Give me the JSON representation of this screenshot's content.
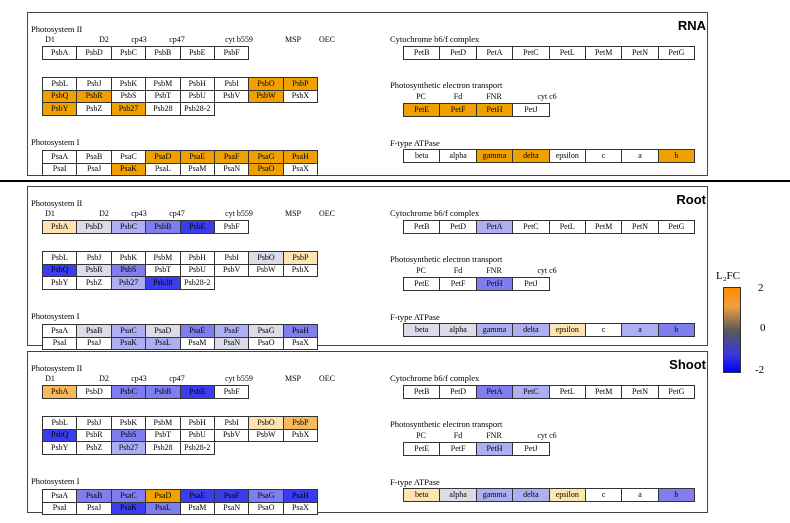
{
  "colors": {
    "0": "#ffffff",
    "u1": "#fde4b0",
    "u2": "#f7b95e",
    "u3": "#f0a000",
    "d1": "#dcdce8",
    "d2": "#aeaef2",
    "d3": "#7e7ef0",
    "d4": "#3b3bf0"
  },
  "legend": {
    "title": "L₂FC",
    "max": "2",
    "mid": "0",
    "min": "-2"
  },
  "panels": [
    {
      "name": "RNA",
      "ps2": {
        "title": "Photosystem II",
        "subunits": {
          "d1": "D1",
          "d2": "D2",
          "cp43": "cp43",
          "cp47": "cp47",
          "cytb559": "cyt b559",
          "msp": "MSP",
          "oec": "OEC"
        },
        "rows": [
          [
            [
              "PsbA",
              "0"
            ],
            [
              "PsbD",
              "0"
            ],
            [
              "PsbC",
              "0"
            ],
            [
              "PsbB",
              "0"
            ],
            [
              "PsbE",
              "0"
            ],
            [
              "PsbF",
              "0"
            ]
          ],
          [
            [
              "PsbL",
              "0"
            ],
            [
              "PsbJ",
              "0"
            ],
            [
              "PsbK",
              "0"
            ],
            [
              "PsbM",
              "0"
            ],
            [
              "PsbH",
              "0"
            ],
            [
              "PsbI",
              "0"
            ],
            [
              "PsbO",
              "u3"
            ],
            [
              "PsbP",
              "u3"
            ]
          ],
          [
            [
              "PsbQ",
              "u3"
            ],
            [
              "PsbR",
              "u3"
            ],
            [
              "PsbS",
              "0"
            ],
            [
              "PsbT",
              "0"
            ],
            [
              "PsbU",
              "0"
            ],
            [
              "PsbV",
              "0"
            ],
            [
              "PsbW",
              "u3"
            ],
            [
              "PsbX",
              "0"
            ]
          ],
          [
            [
              "PsbY",
              "u3"
            ],
            [
              "PsbZ",
              "0"
            ],
            [
              "Psb27",
              "u3"
            ],
            [
              "Psb28",
              "0"
            ],
            [
              "Psb28-2",
              "0"
            ]
          ]
        ]
      },
      "ps1": {
        "title": "Photosystem I",
        "rows": [
          [
            [
              "PsaA",
              "0"
            ],
            [
              "PsaB",
              "0"
            ],
            [
              "PsaC",
              "0"
            ],
            [
              "PsaD",
              "u3"
            ],
            [
              "PsaE",
              "u3"
            ],
            [
              "PsaF",
              "u3"
            ],
            [
              "PsaG",
              "u3"
            ],
            [
              "PsaH",
              "u3"
            ]
          ],
          [
            [
              "PsaI",
              "0"
            ],
            [
              "PsaJ",
              "0"
            ],
            [
              "PsaK",
              "u3"
            ],
            [
              "PsaL",
              "0"
            ],
            [
              "PsaM",
              "0"
            ],
            [
              "PsaN",
              "0"
            ],
            [
              "PsaO",
              "u3"
            ],
            [
              "PsaX",
              "0"
            ]
          ]
        ]
      },
      "cyt": {
        "title": "Cytochrome b6/f complex",
        "cells": [
          [
            "PetB",
            "0"
          ],
          [
            "PetD",
            "0"
          ],
          [
            "PetA",
            "0"
          ],
          [
            "PetC",
            "0"
          ],
          [
            "PetL",
            "0"
          ],
          [
            "PetM",
            "0"
          ],
          [
            "PetN",
            "0"
          ],
          [
            "PetG",
            "0"
          ]
        ]
      },
      "pet": {
        "title": "Photosynthetic electron transport",
        "subunits": {
          "pc": "PC",
          "fd": "Fd",
          "fnr": "FNR",
          "cytc6": "cyt c6"
        },
        "cells": [
          [
            "PetE",
            "u3"
          ],
          [
            "PetF",
            "u3"
          ],
          [
            "PetH",
            "u3"
          ],
          [
            "PetJ",
            "0"
          ]
        ]
      },
      "atp": {
        "title": "F-type ATPase",
        "cells": [
          [
            "beta",
            "0"
          ],
          [
            "alpha",
            "0"
          ],
          [
            "gamma",
            "u3"
          ],
          [
            "delta",
            "u3"
          ],
          [
            "epsilon",
            "0"
          ],
          [
            "c",
            "0"
          ],
          [
            "a",
            "0"
          ],
          [
            "b",
            "u3"
          ]
        ]
      }
    },
    {
      "name": "Root",
      "ps2": {
        "title": "Photosystem II",
        "subunits": {
          "d1": "D1",
          "d2": "D2",
          "cp43": "cp43",
          "cp47": "cp47",
          "cytb559": "cyt b559",
          "msp": "MSP",
          "oec": "OEC"
        },
        "rows": [
          [
            [
              "PsbA",
              "u1"
            ],
            [
              "PsbD",
              "d1"
            ],
            [
              "PsbC",
              "d2"
            ],
            [
              "PsbB",
              "d3"
            ],
            [
              "PsbE",
              "d4"
            ],
            [
              "PsbF",
              "0"
            ]
          ],
          [
            [
              "PsbL",
              "0"
            ],
            [
              "PsbJ",
              "0"
            ],
            [
              "PsbK",
              "0"
            ],
            [
              "PsbM",
              "0"
            ],
            [
              "PsbH",
              "0"
            ],
            [
              "PsbI",
              "0"
            ],
            [
              "PsbO",
              "d1"
            ],
            [
              "PsbP",
              "u1"
            ]
          ],
          [
            [
              "PsbQ",
              "d4"
            ],
            [
              "PsbR",
              "d1"
            ],
            [
              "PsbS",
              "d3"
            ],
            [
              "PsbT",
              "0"
            ],
            [
              "PsbU",
              "0"
            ],
            [
              "PsbV",
              "0"
            ],
            [
              "PsbW",
              "0"
            ],
            [
              "PsbX",
              "0"
            ]
          ],
          [
            [
              "PsbY",
              "0"
            ],
            [
              "PsbZ",
              "0"
            ],
            [
              "Psb27",
              "d2"
            ],
            [
              "Psb28",
              "d4"
            ],
            [
              "Psb28-2",
              "0"
            ]
          ]
        ]
      },
      "ps1": {
        "title": "Photosystem I",
        "rows": [
          [
            [
              "PsaA",
              "0"
            ],
            [
              "PsaB",
              "d1"
            ],
            [
              "PsaC",
              "d2"
            ],
            [
              "PsaD",
              "d1"
            ],
            [
              "PsaE",
              "d3"
            ],
            [
              "PsaF",
              "d2"
            ],
            [
              "PsaG",
              "d1"
            ],
            [
              "PsaH",
              "d3"
            ]
          ],
          [
            [
              "PsaI",
              "0"
            ],
            [
              "PsaJ",
              "0"
            ],
            [
              "PsaK",
              "d2"
            ],
            [
              "PsaL",
              "d2"
            ],
            [
              "PsaM",
              "0"
            ],
            [
              "PsaN",
              "d1"
            ],
            [
              "PsaO",
              "0"
            ],
            [
              "PsaX",
              "0"
            ]
          ]
        ]
      },
      "cyt": {
        "title": "Cytochrome b6/f complex",
        "cells": [
          [
            "PetB",
            "0"
          ],
          [
            "PetD",
            "0"
          ],
          [
            "PetA",
            "d2"
          ],
          [
            "PetC",
            "0"
          ],
          [
            "PetL",
            "0"
          ],
          [
            "PetM",
            "0"
          ],
          [
            "PetN",
            "0"
          ],
          [
            "PetG",
            "0"
          ]
        ]
      },
      "pet": {
        "title": "Photosynthetic electron transport",
        "subunits": {
          "pc": "PC",
          "fd": "Fd",
          "fnr": "FNR",
          "cytc6": "cyt c6"
        },
        "cells": [
          [
            "PetE",
            "0"
          ],
          [
            "PetF",
            "0"
          ],
          [
            "PetH",
            "d3"
          ],
          [
            "PetJ",
            "0"
          ]
        ]
      },
      "atp": {
        "title": "F-type ATPase",
        "cells": [
          [
            "beta",
            "d1"
          ],
          [
            "alpha",
            "d1"
          ],
          [
            "gamma",
            "d2"
          ],
          [
            "delta",
            "d2"
          ],
          [
            "epsilon",
            "u1"
          ],
          [
            "c",
            "0"
          ],
          [
            "a",
            "d2"
          ],
          [
            "b",
            "d3"
          ]
        ]
      }
    },
    {
      "name": "Shoot",
      "ps2": {
        "title": "Photosystem II",
        "subunits": {
          "d1": "D1",
          "d2": "D2",
          "cp43": "cp43",
          "cp47": "cp47",
          "cytb559": "cyt b559",
          "msp": "MSP",
          "oec": "OEC"
        },
        "rows": [
          [
            [
              "PsbA",
              "u2"
            ],
            [
              "PsbD",
              "0"
            ],
            [
              "PsbC",
              "d3"
            ],
            [
              "PsbB",
              "d3"
            ],
            [
              "PsbE",
              "d4"
            ],
            [
              "PsbF",
              "0"
            ]
          ],
          [
            [
              "PsbL",
              "0"
            ],
            [
              "PsbJ",
              "0"
            ],
            [
              "PsbK",
              "0"
            ],
            [
              "PsbM",
              "0"
            ],
            [
              "PsbH",
              "0"
            ],
            [
              "PsbI",
              "0"
            ],
            [
              "PsbO",
              "u1"
            ],
            [
              "PsbP",
              "u2"
            ]
          ],
          [
            [
              "PsbQ",
              "d4"
            ],
            [
              "PsbR",
              "0"
            ],
            [
              "PsbS",
              "d3"
            ],
            [
              "PsbT",
              "0"
            ],
            [
              "PsbU",
              "0"
            ],
            [
              "PsbV",
              "0"
            ],
            [
              "PsbW",
              "0"
            ],
            [
              "PsbX",
              "0"
            ]
          ],
          [
            [
              "PsbY",
              "0"
            ],
            [
              "PsbZ",
              "0"
            ],
            [
              "Psb27",
              "d2"
            ],
            [
              "Psb28",
              "0"
            ],
            [
              "Psb28-2",
              "0"
            ]
          ]
        ]
      },
      "ps1": {
        "title": "Photosystem I",
        "rows": [
          [
            [
              "PsaA",
              "0"
            ],
            [
              "PsaB",
              "d3"
            ],
            [
              "PsaC",
              "d3"
            ],
            [
              "PsaD",
              "u3"
            ],
            [
              "PsaE",
              "d4"
            ],
            [
              "PsaF",
              "d4"
            ],
            [
              "PsaG",
              "d3"
            ],
            [
              "PsaH",
              "d4"
            ]
          ],
          [
            [
              "PsaI",
              "0"
            ],
            [
              "PsaJ",
              "0"
            ],
            [
              "PsaK",
              "d4"
            ],
            [
              "PsaL",
              "d3"
            ],
            [
              "PsaM",
              "0"
            ],
            [
              "PsaN",
              "0"
            ],
            [
              "PsaO",
              "0"
            ],
            [
              "PsaX",
              "0"
            ]
          ]
        ]
      },
      "cyt": {
        "title": "Cytochrome b6/f complex",
        "cells": [
          [
            "PetB",
            "0"
          ],
          [
            "PetD",
            "0"
          ],
          [
            "PetA",
            "d3"
          ],
          [
            "PetC",
            "d2"
          ],
          [
            "PetL",
            "0"
          ],
          [
            "PetM",
            "0"
          ],
          [
            "PetN",
            "0"
          ],
          [
            "PetG",
            "0"
          ]
        ]
      },
      "pet": {
        "title": "Photosynthetic electron transport",
        "subunits": {
          "pc": "PC",
          "fd": "Fd",
          "fnr": "FNR",
          "cytc6": "cyt c6"
        },
        "cells": [
          [
            "PetE",
            "0"
          ],
          [
            "PetF",
            "0"
          ],
          [
            "PetH",
            "d2"
          ],
          [
            "PetJ",
            "0"
          ]
        ]
      },
      "atp": {
        "title": "F-type ATPase",
        "cells": [
          [
            "beta",
            "u1"
          ],
          [
            "alpha",
            "d1"
          ],
          [
            "gamma",
            "d2"
          ],
          [
            "delta",
            "d2"
          ],
          [
            "epsilon",
            "u1"
          ],
          [
            "c",
            "0"
          ],
          [
            "a",
            "0"
          ],
          [
            "b",
            "d3"
          ]
        ]
      }
    }
  ]
}
